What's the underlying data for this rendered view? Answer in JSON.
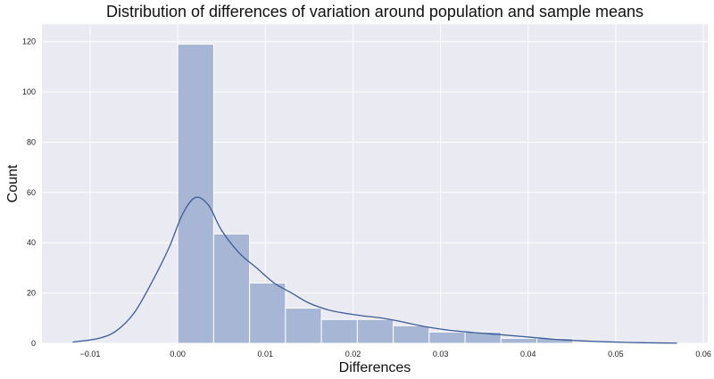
{
  "chart_data": {
    "type": "bar",
    "title": "Distribution of differences of variation around population and sample means",
    "xlabel": "Differences",
    "ylabel": "Count",
    "xlim": [
      -0.0155,
      0.0605
    ],
    "ylim": [
      0,
      127
    ],
    "xticks": [
      -0.01,
      0.0,
      0.01,
      0.02,
      0.03,
      0.04,
      0.05,
      0.06
    ],
    "xtick_labels": [
      "−0.01",
      "0.00",
      "0.01",
      "0.02",
      "0.03",
      "0.04",
      "0.05",
      "0.06"
    ],
    "yticks": [
      0,
      20,
      40,
      60,
      80,
      100,
      120
    ],
    "ytick_labels": [
      "0",
      "20",
      "40",
      "60",
      "80",
      "100",
      "120"
    ],
    "grid": true,
    "bins": [
      {
        "x0": 0.0,
        "x1": 0.0041,
        "value": 119
      },
      {
        "x0": 0.0041,
        "x1": 0.0082,
        "value": 43.5
      },
      {
        "x0": 0.0082,
        "x1": 0.0123,
        "value": 24
      },
      {
        "x0": 0.0123,
        "x1": 0.0164,
        "value": 14
      },
      {
        "x0": 0.0164,
        "x1": 0.0205,
        "value": 9.5
      },
      {
        "x0": 0.0205,
        "x1": 0.0246,
        "value": 9.5
      },
      {
        "x0": 0.0246,
        "x1": 0.0287,
        "value": 7
      },
      {
        "x0": 0.0287,
        "x1": 0.0328,
        "value": 4.5
      },
      {
        "x0": 0.0328,
        "x1": 0.0369,
        "value": 4.5
      },
      {
        "x0": 0.0369,
        "x1": 0.041,
        "value": 2
      },
      {
        "x0": 0.041,
        "x1": 0.0451,
        "value": 2
      }
    ],
    "kde": {
      "x": [
        -0.012,
        -0.009,
        -0.007,
        -0.005,
        -0.003,
        -0.001,
        0.0005,
        0.002,
        0.0035,
        0.005,
        0.007,
        0.009,
        0.011,
        0.013,
        0.015,
        0.017,
        0.019,
        0.021,
        0.023,
        0.025,
        0.027,
        0.029,
        0.031,
        0.034,
        0.037,
        0.04,
        0.043,
        0.046,
        0.049,
        0.052,
        0.055,
        0.057
      ],
      "y": [
        0.5,
        2,
        5,
        12,
        24,
        38,
        51,
        58,
        55,
        45,
        36,
        30,
        24,
        20,
        16,
        13.5,
        12,
        11,
        10.2,
        9,
        7.5,
        6.2,
        5.2,
        4.2,
        3.4,
        2.5,
        1.6,
        1,
        0.6,
        0.3,
        0.15,
        0.1
      ]
    },
    "colors": {
      "background": "#eaeaf2",
      "grid": "#ffffff",
      "bar": "#a7b6d5",
      "bar_edge": "#ffffff",
      "kde": "#3a5d97"
    }
  }
}
